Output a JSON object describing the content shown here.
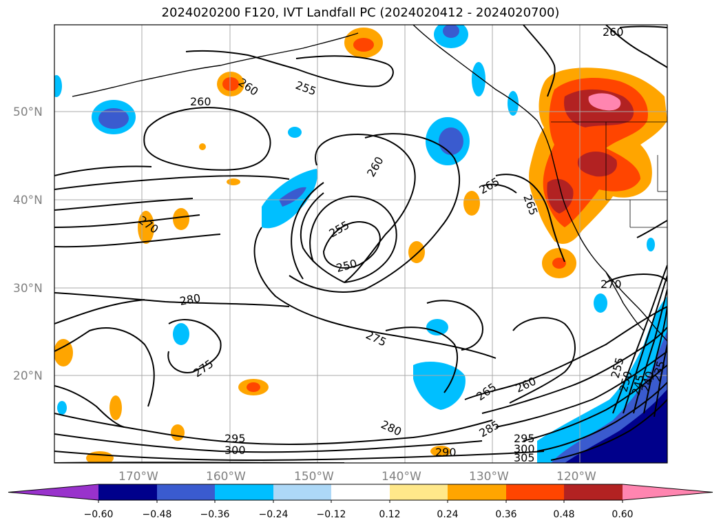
{
  "title": "2024020200 F120, IVT Landfall PC (2024020412 - 2024020700)",
  "map": {
    "lat_labels": [
      "50°N",
      "40°N",
      "30°N",
      "20°N"
    ],
    "lon_labels": [
      "170°W",
      "160°W",
      "150°W",
      "140°W",
      "130°W",
      "120°W"
    ],
    "contour_labels": [
      "260",
      "255",
      "260",
      "260",
      "260",
      "255",
      "250",
      "265",
      "265",
      "270",
      "280",
      "275",
      "275",
      "270",
      "265",
      "260",
      "280",
      "285",
      "295",
      "300",
      "295",
      "300",
      "305",
      "290",
      "235",
      "240",
      "245",
      "250",
      "255"
    ]
  },
  "colorbar": {
    "tick_labels": [
      "−0.60",
      "−0.48",
      "−0.36",
      "−0.24",
      "−0.12",
      "0.12",
      "0.24",
      "0.36",
      "0.48",
      "0.60"
    ],
    "colors": [
      "#9932cc",
      "#00008b",
      "#3a5bcf",
      "#00bfff",
      "#add8f7",
      "#ffffff",
      "#ffe88a",
      "#ffa500",
      "#ff4500",
      "#b22222",
      "#ff85b0"
    ]
  },
  "legend_colors": {
    "contour": "#000000",
    "grid": "#aaaaaa",
    "axes_label": "#808080"
  }
}
